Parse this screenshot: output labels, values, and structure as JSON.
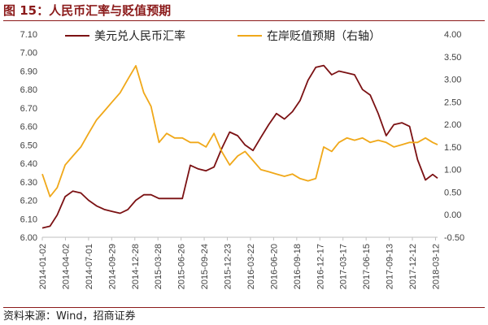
{
  "figure": {
    "title": "图 15：人民币汇率与贬值预期",
    "source": "资料来源：Wind，招商证券"
  },
  "chart_data": {
    "type": "line",
    "x_dates": [
      "2014-01-02",
      "2014-02-01",
      "2014-03-01",
      "2014-04-01",
      "2014-05-01",
      "2014-06-01",
      "2014-07-01",
      "2014-08-01",
      "2014-09-01",
      "2014-10-01",
      "2014-11-01",
      "2014-12-01",
      "2015-01-01",
      "2015-02-01",
      "2015-03-01",
      "2015-04-01",
      "2015-05-01",
      "2015-06-01",
      "2015-07-01",
      "2015-08-01",
      "2015-09-01",
      "2015-10-01",
      "2015-11-01",
      "2015-12-01",
      "2016-01-01",
      "2016-02-01",
      "2016-03-01",
      "2016-04-01",
      "2016-05-01",
      "2016-06-01",
      "2016-07-01",
      "2016-08-01",
      "2016-09-01",
      "2016-10-01",
      "2016-11-01",
      "2016-12-01",
      "2017-01-01",
      "2017-02-01",
      "2017-03-01",
      "2017-04-01",
      "2017-05-01",
      "2017-06-01",
      "2017-07-01",
      "2017-08-01",
      "2017-09-01",
      "2017-10-01",
      "2017-11-01",
      "2017-12-01",
      "2018-01-01",
      "2018-02-01",
      "2018-03-01",
      "2018-03-20"
    ],
    "x_ticks": [
      "2014-01-02",
      "2014-04-02",
      "2014-07-01",
      "2014-09-29",
      "2014-12-28",
      "2015-03-28",
      "2015-06-26",
      "2015-09-24",
      "2015-12-23",
      "2016-03-22",
      "2016-06-20",
      "2016-09-18",
      "2016-12-17",
      "2017-03-17",
      "2017-06-15",
      "2017-09-13",
      "2017-12-12",
      "2018-03-12"
    ],
    "y_left": {
      "min": 6.0,
      "max": 7.1,
      "ticks": [
        "6.00",
        "6.10",
        "6.20",
        "6.30",
        "6.40",
        "6.50",
        "6.60",
        "6.70",
        "6.80",
        "6.90",
        "7.00",
        "7.10"
      ]
    },
    "y_right": {
      "min": -0.5,
      "max": 4.0,
      "ticks": [
        "-0.50",
        "0.00",
        "0.50",
        "1.00",
        "1.50",
        "2.00",
        "2.50",
        "3.00",
        "3.50",
        "4.00"
      ]
    },
    "series": [
      {
        "name": "美元兑人民币汇率",
        "axis": "left",
        "color": "#7B1113",
        "values": [
          6.05,
          6.06,
          6.12,
          6.22,
          6.25,
          6.24,
          6.2,
          6.17,
          6.15,
          6.14,
          6.13,
          6.15,
          6.2,
          6.23,
          6.23,
          6.21,
          6.21,
          6.21,
          6.21,
          6.39,
          6.37,
          6.36,
          6.38,
          6.48,
          6.57,
          6.55,
          6.5,
          6.47,
          6.54,
          6.61,
          6.67,
          6.64,
          6.68,
          6.74,
          6.85,
          6.92,
          6.93,
          6.88,
          6.9,
          6.89,
          6.88,
          6.8,
          6.77,
          6.67,
          6.55,
          6.61,
          6.62,
          6.6,
          6.42,
          6.31,
          6.34,
          6.32
        ]
      },
      {
        "name": "在岸贬值预期（右轴）",
        "axis": "right",
        "color": "#F0A819",
        "values": [
          0.9,
          0.4,
          0.6,
          1.1,
          1.3,
          1.5,
          1.8,
          2.1,
          2.3,
          2.5,
          2.7,
          3.0,
          3.3,
          2.7,
          2.4,
          1.6,
          1.8,
          1.7,
          1.7,
          1.6,
          1.6,
          1.5,
          1.8,
          1.4,
          1.1,
          1.3,
          1.4,
          1.2,
          1.0,
          0.95,
          0.9,
          0.85,
          0.9,
          0.8,
          0.75,
          0.8,
          1.5,
          1.4,
          1.6,
          1.7,
          1.65,
          1.7,
          1.6,
          1.65,
          1.6,
          1.5,
          1.55,
          1.6,
          1.6,
          1.7,
          1.6,
          1.55
        ]
      }
    ],
    "legend_position": "top",
    "grid": false
  }
}
